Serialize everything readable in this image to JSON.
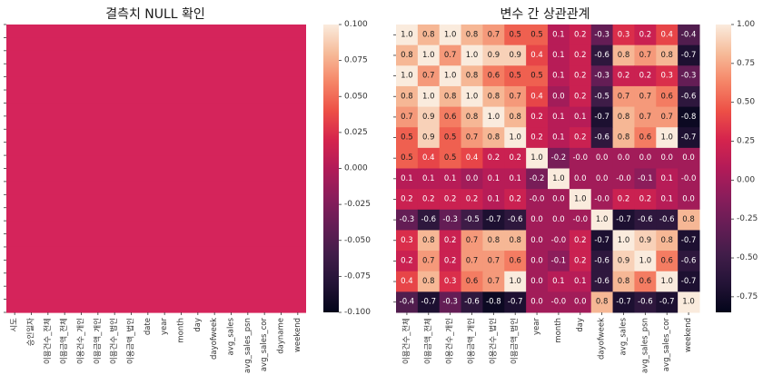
{
  "chart_data": [
    {
      "type": "heatmap",
      "title": "결측치 NULL 확인",
      "xlabel": "",
      "ylabel": "",
      "x_tick_labels": [
        "시도",
        "승인일자",
        "이용건수_전체",
        "이용금액_전체",
        "이용건수_개인",
        "이용금액_개인",
        "이용건수_법인",
        "이용금액_법인",
        "date",
        "year",
        "month",
        "day",
        "dayofweek",
        "avg_sales",
        "avg_sales_psn",
        "avg_sales_cor",
        "dayname",
        "weekend"
      ],
      "y_ticks_labelled": false,
      "values": "all 0 (no null values in any column)",
      "fill_value": 0.0,
      "colorbar": {
        "range": [
          -0.1,
          0.1
        ],
        "ticks": [
          "0.100",
          "0.075",
          "0.050",
          "0.025",
          "0.000",
          "-0.025",
          "-0.050",
          "-0.075",
          "-0.100"
        ]
      },
      "colormap": "rocket",
      "cell_color": "#d5245b"
    },
    {
      "type": "heatmap",
      "title": "변수 간 상관관계",
      "xlabel": "",
      "ylabel": "",
      "categories": [
        "이용건수_전체",
        "이용금액_전체",
        "이용건수_개인",
        "이용금액_개인",
        "이용건수_법인",
        "이용금액_법인",
        "year",
        "month",
        "day",
        "dayofweek",
        "avg_sales",
        "avg_sales_psn",
        "avg_sales_cor",
        "weekend"
      ],
      "annotations": [
        [
          "1.0",
          "0.8",
          "1.0",
          "0.8",
          "0.7",
          "0.5",
          "0.5",
          "0.1",
          "0.2",
          "-0.3",
          "0.3",
          "0.2",
          "0.4",
          "-0.4"
        ],
        [
          "0.8",
          "1.0",
          "0.7",
          "1.0",
          "0.9",
          "0.9",
          "0.4",
          "0.1",
          "0.2",
          "-0.6",
          "0.8",
          "0.7",
          "0.8",
          "-0.7"
        ],
        [
          "1.0",
          "0.7",
          "1.0",
          "0.8",
          "0.6",
          "0.5",
          "0.5",
          "0.1",
          "0.2",
          "-0.3",
          "0.2",
          "0.2",
          "0.3",
          "-0.3"
        ],
        [
          "0.8",
          "1.0",
          "0.8",
          "1.0",
          "0.8",
          "0.7",
          "0.4",
          "0.0",
          "0.2",
          "-0.5",
          "0.7",
          "0.7",
          "0.6",
          "-0.6"
        ],
        [
          "0.7",
          "0.9",
          "0.6",
          "0.8",
          "1.0",
          "0.8",
          "0.2",
          "0.1",
          "0.1",
          "-0.7",
          "0.8",
          "0.7",
          "0.7",
          "-0.8"
        ],
        [
          "0.5",
          "0.9",
          "0.5",
          "0.7",
          "0.8",
          "1.0",
          "0.2",
          "0.1",
          "0.2",
          "-0.6",
          "0.8",
          "0.6",
          "1.0",
          "-0.7"
        ],
        [
          "0.5",
          "0.4",
          "0.5",
          "0.4",
          "0.2",
          "0.2",
          "1.0",
          "-0.2",
          "-0.0",
          "0.0",
          "0.0",
          "0.0",
          "0.0",
          "0.0"
        ],
        [
          "0.1",
          "0.1",
          "0.1",
          "0.0",
          "0.1",
          "0.1",
          "-0.2",
          "1.0",
          "0.0",
          "0.0",
          "-0.0",
          "-0.1",
          "0.1",
          "-0.0"
        ],
        [
          "0.2",
          "0.2",
          "0.2",
          "0.2",
          "0.1",
          "0.2",
          "-0.0",
          "0.0",
          "1.0",
          "-0.0",
          "0.2",
          "0.2",
          "0.1",
          "0.0"
        ],
        [
          "-0.3",
          "-0.6",
          "-0.3",
          "-0.5",
          "-0.7",
          "-0.6",
          "0.0",
          "0.0",
          "-0.0",
          "1.0",
          "-0.7",
          "-0.6",
          "-0.6",
          "0.8"
        ],
        [
          "0.3",
          "0.8",
          "0.2",
          "0.7",
          "0.8",
          "0.8",
          "0.0",
          "-0.0",
          "0.2",
          "-0.7",
          "1.0",
          "0.9",
          "0.8",
          "-0.7"
        ],
        [
          "0.2",
          "0.7",
          "0.2",
          "0.7",
          "0.7",
          "0.6",
          "0.0",
          "-0.1",
          "0.2",
          "-0.6",
          "0.9",
          "1.0",
          "0.6",
          "-0.6"
        ],
        [
          "0.4",
          "0.8",
          "0.3",
          "0.6",
          "0.7",
          "1.0",
          "0.0",
          "0.1",
          "0.1",
          "-0.6",
          "0.8",
          "0.6",
          "1.0",
          "-0.7"
        ],
        [
          "-0.4",
          "-0.7",
          "-0.3",
          "-0.6",
          "-0.8",
          "-0.7",
          "0.0",
          "-0.0",
          "0.0",
          "0.8",
          "-0.7",
          "-0.6",
          "-0.7",
          "1.0"
        ]
      ],
      "colorbar": {
        "range": [
          -0.85,
          1.0
        ],
        "ticks": [
          "1.00",
          "0.75",
          "0.50",
          "0.25",
          "0.00",
          "-0.25",
          "-0.50",
          "-0.75"
        ]
      },
      "colormap": "rocket"
    }
  ]
}
